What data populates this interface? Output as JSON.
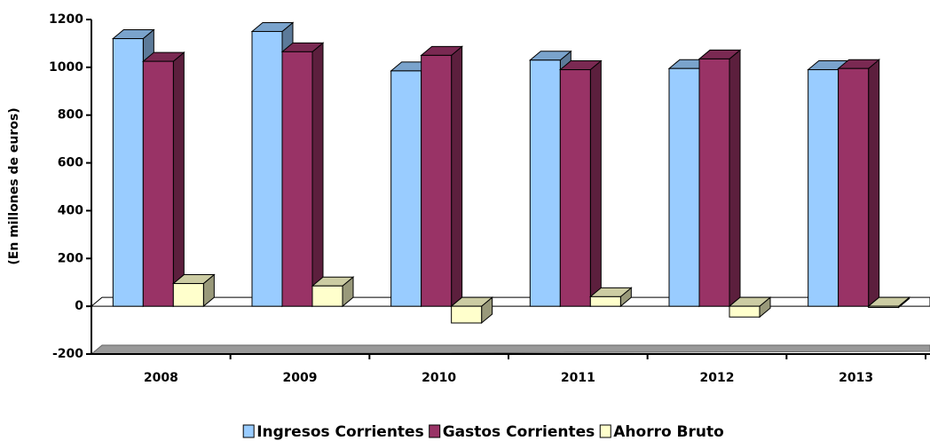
{
  "chart_data": {
    "type": "bar3d",
    "y_label": "(En millones de euros)",
    "categories": [
      "2008",
      "2009",
      "2010",
      "2011",
      "2012",
      "2013"
    ],
    "series": [
      {
        "name": "Ingresos Corrientes",
        "color": "#99ccff",
        "values": [
          1120,
          1150,
          985,
          1030,
          995,
          990
        ]
      },
      {
        "name": "Gastos Corrientes",
        "color": "#993366",
        "values": [
          1025,
          1065,
          1050,
          990,
          1035,
          995
        ]
      },
      {
        "name": "Ahorro Bruto",
        "color": "#ffffcc",
        "values": [
          95,
          85,
          -70,
          40,
          -45,
          -5
        ]
      }
    ],
    "ylim": [
      -200,
      1200
    ],
    "yticks": [
      -200,
      0,
      200,
      400,
      600,
      800,
      1000,
      1200
    ],
    "legend": "bottom"
  }
}
